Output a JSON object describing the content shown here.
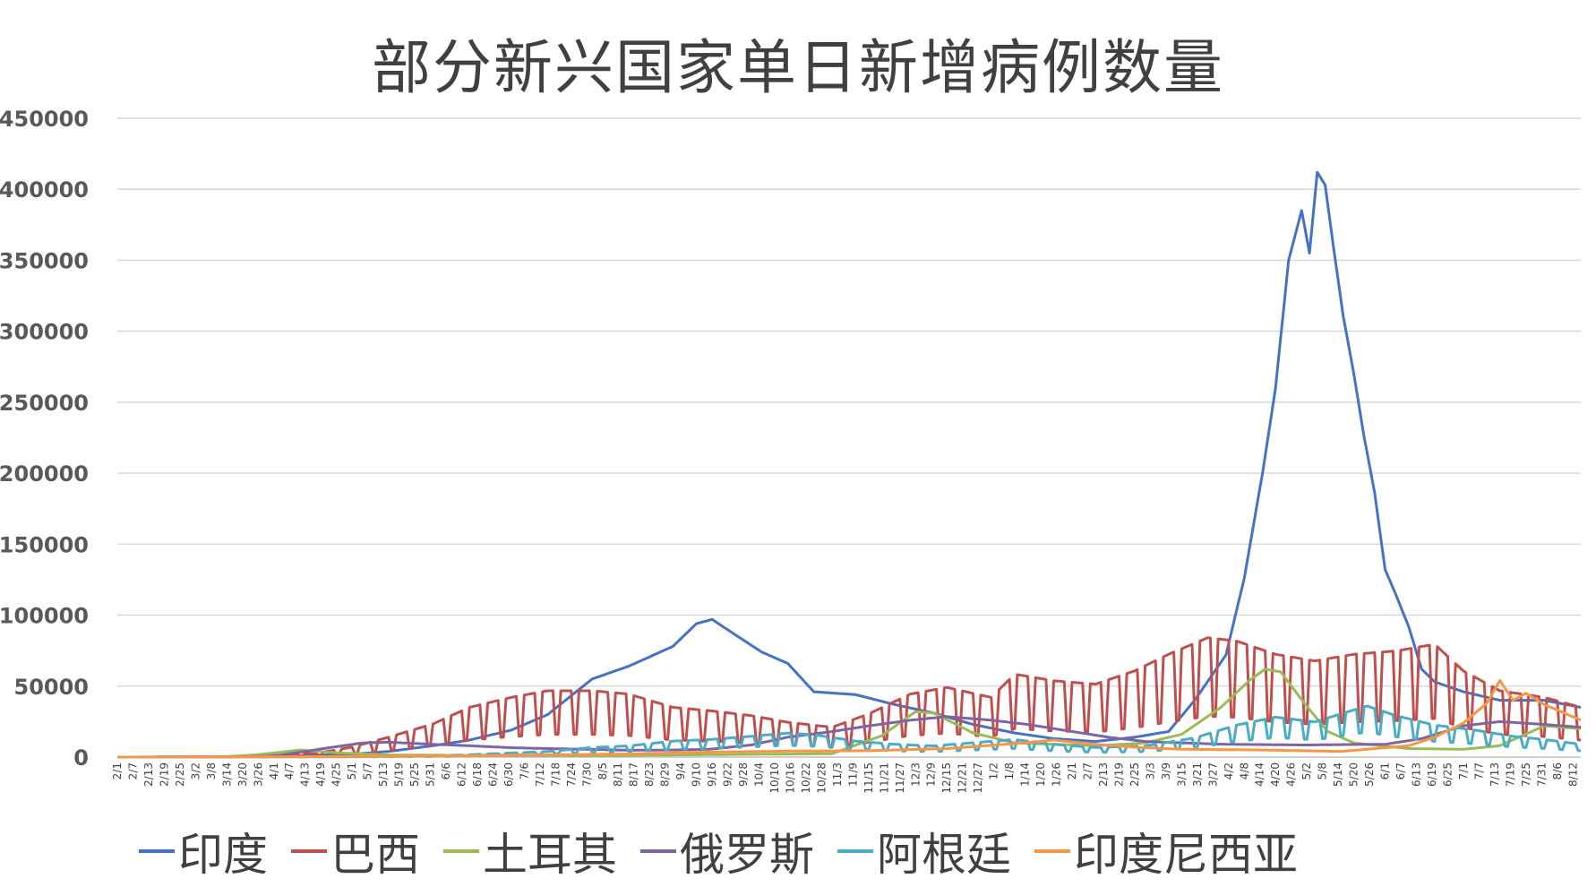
{
  "chart_data": {
    "type": "line",
    "title": "部分新兴国家单日新增病例数量",
    "ylim": [
      0,
      450000
    ],
    "y_ticks": [
      "0",
      "50000",
      "100000",
      "150000",
      "200000",
      "250000",
      "300000",
      "350000",
      "400000",
      "450000"
    ],
    "grid": true,
    "legend_position": "bottom",
    "x_range": [
      "2020-02-01",
      "2021-08-15"
    ],
    "x_tick_labels": [
      "2/1",
      "2/7",
      "2/13",
      "2/19",
      "2/25",
      "3/2",
      "3/8",
      "3/14",
      "3/20",
      "3/26",
      "4/1",
      "4/7",
      "4/13",
      "4/19",
      "4/25",
      "5/1",
      "5/7",
      "5/13",
      "5/19",
      "5/25",
      "5/31",
      "6/6",
      "6/12",
      "6/18",
      "6/24",
      "6/30",
      "7/6",
      "7/12",
      "7/18",
      "7/24",
      "7/30",
      "8/5",
      "8/11",
      "8/17",
      "8/23",
      "8/29",
      "9/4",
      "9/10",
      "9/16",
      "9/22",
      "9/28",
      "10/4",
      "10/10",
      "10/16",
      "10/22",
      "10/28",
      "11/3",
      "11/9",
      "11/15",
      "11/21",
      "11/27",
      "12/3",
      "12/9",
      "12/15",
      "12/21",
      "12/27",
      "1/2",
      "1/8",
      "1/14",
      "1/20",
      "1/26",
      "2/1",
      "2/7",
      "2/13",
      "2/19",
      "2/25",
      "3/3",
      "3/9",
      "3/15",
      "3/21",
      "3/27",
      "4/2",
      "4/8",
      "4/14",
      "4/20",
      "4/26",
      "5/2",
      "5/8",
      "5/14",
      "5/20",
      "5/26",
      "6/1",
      "6/7",
      "6/13",
      "6/19",
      "6/25",
      "7/1",
      "7/7",
      "7/13",
      "7/19",
      "7/25",
      "7/31",
      "8/6",
      "8/12"
    ],
    "series": [
      {
        "name": "印度",
        "color": "#4472C4",
        "points": [
          [
            "2020-02-01",
            0
          ],
          [
            "2020-03-15",
            100
          ],
          [
            "2020-04-01",
            400
          ],
          [
            "2020-04-20",
            1500
          ],
          [
            "2020-05-01",
            2000
          ],
          [
            "2020-05-15",
            4000
          ],
          [
            "2020-06-01",
            8000
          ],
          [
            "2020-06-15",
            12000
          ],
          [
            "2020-07-01",
            19000
          ],
          [
            "2020-07-15",
            30000
          ],
          [
            "2020-08-01",
            55000
          ],
          [
            "2020-08-15",
            64000
          ],
          [
            "2020-09-01",
            78000
          ],
          [
            "2020-09-10",
            94000
          ],
          [
            "2020-09-16",
            97000
          ],
          [
            "2020-09-25",
            86000
          ],
          [
            "2020-10-05",
            74000
          ],
          [
            "2020-10-15",
            66000
          ],
          [
            "2020-10-25",
            46000
          ],
          [
            "2020-11-10",
            44000
          ],
          [
            "2020-11-25",
            37000
          ],
          [
            "2020-12-10",
            31000
          ],
          [
            "2020-12-25",
            23000
          ],
          [
            "2021-01-10",
            17000
          ],
          [
            "2021-01-25",
            13000
          ],
          [
            "2021-02-10",
            11000
          ],
          [
            "2021-02-25",
            14000
          ],
          [
            "2021-03-10",
            18000
          ],
          [
            "2021-03-20",
            40000
          ],
          [
            "2021-04-01",
            72000
          ],
          [
            "2021-04-08",
            126000
          ],
          [
            "2021-04-15",
            200000
          ],
          [
            "2021-04-20",
            260000
          ],
          [
            "2021-04-25",
            350000
          ],
          [
            "2021-04-30",
            385000
          ],
          [
            "2021-05-03",
            355000
          ],
          [
            "2021-05-06",
            412000
          ],
          [
            "2021-05-09",
            403000
          ],
          [
            "2021-05-12",
            362000
          ],
          [
            "2021-05-16",
            310000
          ],
          [
            "2021-05-20",
            270000
          ],
          [
            "2021-05-24",
            225000
          ],
          [
            "2021-05-28",
            186000
          ],
          [
            "2021-06-01",
            132000
          ],
          [
            "2021-06-05",
            115000
          ],
          [
            "2021-06-10",
            92000
          ],
          [
            "2021-06-15",
            62000
          ],
          [
            "2021-06-20",
            53000
          ],
          [
            "2021-07-01",
            46000
          ],
          [
            "2021-07-15",
            40000
          ],
          [
            "2021-08-01",
            40000
          ],
          [
            "2021-08-15",
            35000
          ]
        ]
      },
      {
        "name": "巴西",
        "color": "#C0504D",
        "points": [
          [
            "2020-02-01",
            0
          ],
          [
            "2020-03-15",
            200
          ],
          [
            "2020-04-01",
            1000
          ],
          [
            "2020-04-20",
            3000
          ],
          [
            "2020-05-01",
            6000
          ],
          [
            "2020-05-15",
            12000
          ],
          [
            "2020-06-01",
            20000
          ],
          [
            "2020-06-15",
            30000
          ],
          [
            "2020-07-01",
            36000
          ],
          [
            "2020-07-15",
            40000
          ],
          [
            "2020-08-01",
            40000
          ],
          [
            "2020-08-15",
            38000
          ],
          [
            "2020-09-01",
            30000
          ],
          [
            "2020-09-15",
            28000
          ],
          [
            "2020-10-01",
            25000
          ],
          [
            "2020-10-15",
            21000
          ],
          [
            "2020-11-01",
            18000
          ],
          [
            "2020-11-15",
            26000
          ],
          [
            "2020-12-01",
            38000
          ],
          [
            "2020-12-15",
            42000
          ],
          [
            "2021-01-01",
            36000
          ],
          [
            "2021-01-10",
            50000
          ],
          [
            "2021-01-25",
            46000
          ],
          [
            "2021-02-10",
            44000
          ],
          [
            "2021-02-25",
            52000
          ],
          [
            "2021-03-10",
            62000
          ],
          [
            "2021-03-25",
            72000
          ],
          [
            "2021-04-05",
            70000
          ],
          [
            "2021-04-20",
            62000
          ],
          [
            "2021-05-05",
            58000
          ],
          [
            "2021-05-20",
            62000
          ],
          [
            "2021-06-05",
            64000
          ],
          [
            "2021-06-20",
            68000
          ],
          [
            "2021-07-01",
            52000
          ],
          [
            "2021-07-15",
            40000
          ],
          [
            "2021-08-01",
            36000
          ],
          [
            "2021-08-15",
            30000
          ]
        ],
        "weekly_oscillation": 0.6
      },
      {
        "name": "土耳其",
        "color": "#9BBB59",
        "points": [
          [
            "2020-02-01",
            0
          ],
          [
            "2020-03-10",
            0
          ],
          [
            "2020-03-25",
            1500
          ],
          [
            "2020-04-11",
            5000
          ],
          [
            "2020-04-25",
            3000
          ],
          [
            "2020-05-15",
            1500
          ],
          [
            "2020-06-15",
            1200
          ],
          [
            "2020-08-01",
            1000
          ],
          [
            "2020-09-15",
            1700
          ],
          [
            "2020-11-01",
            2400
          ],
          [
            "2020-11-20",
            15000
          ],
          [
            "2020-12-03",
            32000
          ],
          [
            "2020-12-10",
            31000
          ],
          [
            "2020-12-25",
            17000
          ],
          [
            "2021-01-10",
            10000
          ],
          [
            "2021-02-10",
            8000
          ],
          [
            "2021-03-01",
            10000
          ],
          [
            "2021-03-15",
            16000
          ],
          [
            "2021-03-30",
            35000
          ],
          [
            "2021-04-10",
            54000
          ],
          [
            "2021-04-16",
            62000
          ],
          [
            "2021-04-22",
            60000
          ],
          [
            "2021-05-01",
            38000
          ],
          [
            "2021-05-10",
            18000
          ],
          [
            "2021-05-20",
            10000
          ],
          [
            "2021-06-10",
            6000
          ],
          [
            "2021-07-01",
            5500
          ],
          [
            "2021-07-15",
            8000
          ],
          [
            "2021-08-01",
            22000
          ],
          [
            "2021-08-15",
            20000
          ]
        ]
      },
      {
        "name": "俄罗斯",
        "color": "#8064A2",
        "points": [
          [
            "2020-02-01",
            0
          ],
          [
            "2020-03-15",
            100
          ],
          [
            "2020-04-01",
            700
          ],
          [
            "2020-04-20",
            6000
          ],
          [
            "2020-05-05",
            10000
          ],
          [
            "2020-05-15",
            10500
          ],
          [
            "2020-06-01",
            9000
          ],
          [
            "2020-06-15",
            8000
          ],
          [
            "2020-07-01",
            6600
          ],
          [
            "2020-07-15",
            6000
          ],
          [
            "2020-08-01",
            5400
          ],
          [
            "2020-08-15",
            4800
          ],
          [
            "2020-09-01",
            5000
          ],
          [
            "2020-09-15",
            5500
          ],
          [
            "2020-10-01",
            8500
          ],
          [
            "2020-10-15",
            14000
          ],
          [
            "2020-11-01",
            18000
          ],
          [
            "2020-11-15",
            22000
          ],
          [
            "2020-12-01",
            26000
          ],
          [
            "2020-12-15",
            28500
          ],
          [
            "2021-01-01",
            26000
          ],
          [
            "2021-01-15",
            23000
          ],
          [
            "2021-02-01",
            18000
          ],
          [
            "2021-02-15",
            14000
          ],
          [
            "2021-03-01",
            11000
          ],
          [
            "2021-03-15",
            10000
          ],
          [
            "2021-04-01",
            9000
          ],
          [
            "2021-04-15",
            8800
          ],
          [
            "2021-05-01",
            8500
          ],
          [
            "2021-05-15",
            8800
          ],
          [
            "2021-06-01",
            9000
          ],
          [
            "2021-06-15",
            13000
          ],
          [
            "2021-07-01",
            22000
          ],
          [
            "2021-07-15",
            25000
          ],
          [
            "2021-08-01",
            23000
          ],
          [
            "2021-08-15",
            21000
          ]
        ]
      },
      {
        "name": "阿根廷",
        "color": "#4BACC6",
        "points": [
          [
            "2020-02-01",
            0
          ],
          [
            "2020-04-01",
            100
          ],
          [
            "2020-05-01",
            200
          ],
          [
            "2020-06-01",
            700
          ],
          [
            "2020-06-15",
            1500
          ],
          [
            "2020-07-01",
            2600
          ],
          [
            "2020-07-15",
            3500
          ],
          [
            "2020-08-01",
            6000
          ],
          [
            "2020-08-15",
            7000
          ],
          [
            "2020-09-01",
            10000
          ],
          [
            "2020-09-15",
            11000
          ],
          [
            "2020-10-01",
            13000
          ],
          [
            "2020-10-15",
            15000
          ],
          [
            "2020-10-25",
            14000
          ],
          [
            "2020-11-10",
            10000
          ],
          [
            "2020-11-25",
            8000
          ],
          [
            "2020-12-10",
            7000
          ],
          [
            "2020-12-25",
            9000
          ],
          [
            "2021-01-10",
            11000
          ],
          [
            "2021-01-25",
            8000
          ],
          [
            "2021-02-10",
            6000
          ],
          [
            "2021-03-01",
            7000
          ],
          [
            "2021-03-20",
            12000
          ],
          [
            "2021-04-05",
            20000
          ],
          [
            "2021-04-20",
            25000
          ],
          [
            "2021-05-05",
            22000
          ],
          [
            "2021-05-15",
            27000
          ],
          [
            "2021-05-25",
            32000
          ],
          [
            "2021-06-05",
            26000
          ],
          [
            "2021-06-20",
            20000
          ],
          [
            "2021-07-05",
            17000
          ],
          [
            "2021-07-20",
            13000
          ],
          [
            "2021-08-01",
            11000
          ],
          [
            "2021-08-15",
            8000
          ]
        ],
        "weekly_oscillation": 0.45
      },
      {
        "name": "印度尼西亚",
        "color": "#F79646",
        "points": [
          [
            "2020-02-01",
            0
          ],
          [
            "2020-03-15",
            50
          ],
          [
            "2020-04-15",
            300
          ],
          [
            "2020-05-15",
            500
          ],
          [
            "2020-06-15",
            1000
          ],
          [
            "2020-07-15",
            1600
          ],
          [
            "2020-08-15",
            2200
          ],
          [
            "2020-09-15",
            3500
          ],
          [
            "2020-10-15",
            4200
          ],
          [
            "2020-11-15",
            4500
          ],
          [
            "2020-12-15",
            6000
          ],
          [
            "2021-01-10",
            9500
          ],
          [
            "2021-01-25",
            12000
          ],
          [
            "2021-02-10",
            9000
          ],
          [
            "2021-02-25",
            7000
          ],
          [
            "2021-03-15",
            5500
          ],
          [
            "2021-04-15",
            5000
          ],
          [
            "2021-05-15",
            4000
          ],
          [
            "2021-05-25",
            5500
          ],
          [
            "2021-06-10",
            8000
          ],
          [
            "2021-06-20",
            14000
          ],
          [
            "2021-07-01",
            24000
          ],
          [
            "2021-07-10",
            38000
          ],
          [
            "2021-07-15",
            54000
          ],
          [
            "2021-07-20",
            40000
          ],
          [
            "2021-07-25",
            45000
          ],
          [
            "2021-08-01",
            37000
          ],
          [
            "2021-08-10",
            30000
          ],
          [
            "2021-08-15",
            26000
          ]
        ]
      }
    ]
  }
}
